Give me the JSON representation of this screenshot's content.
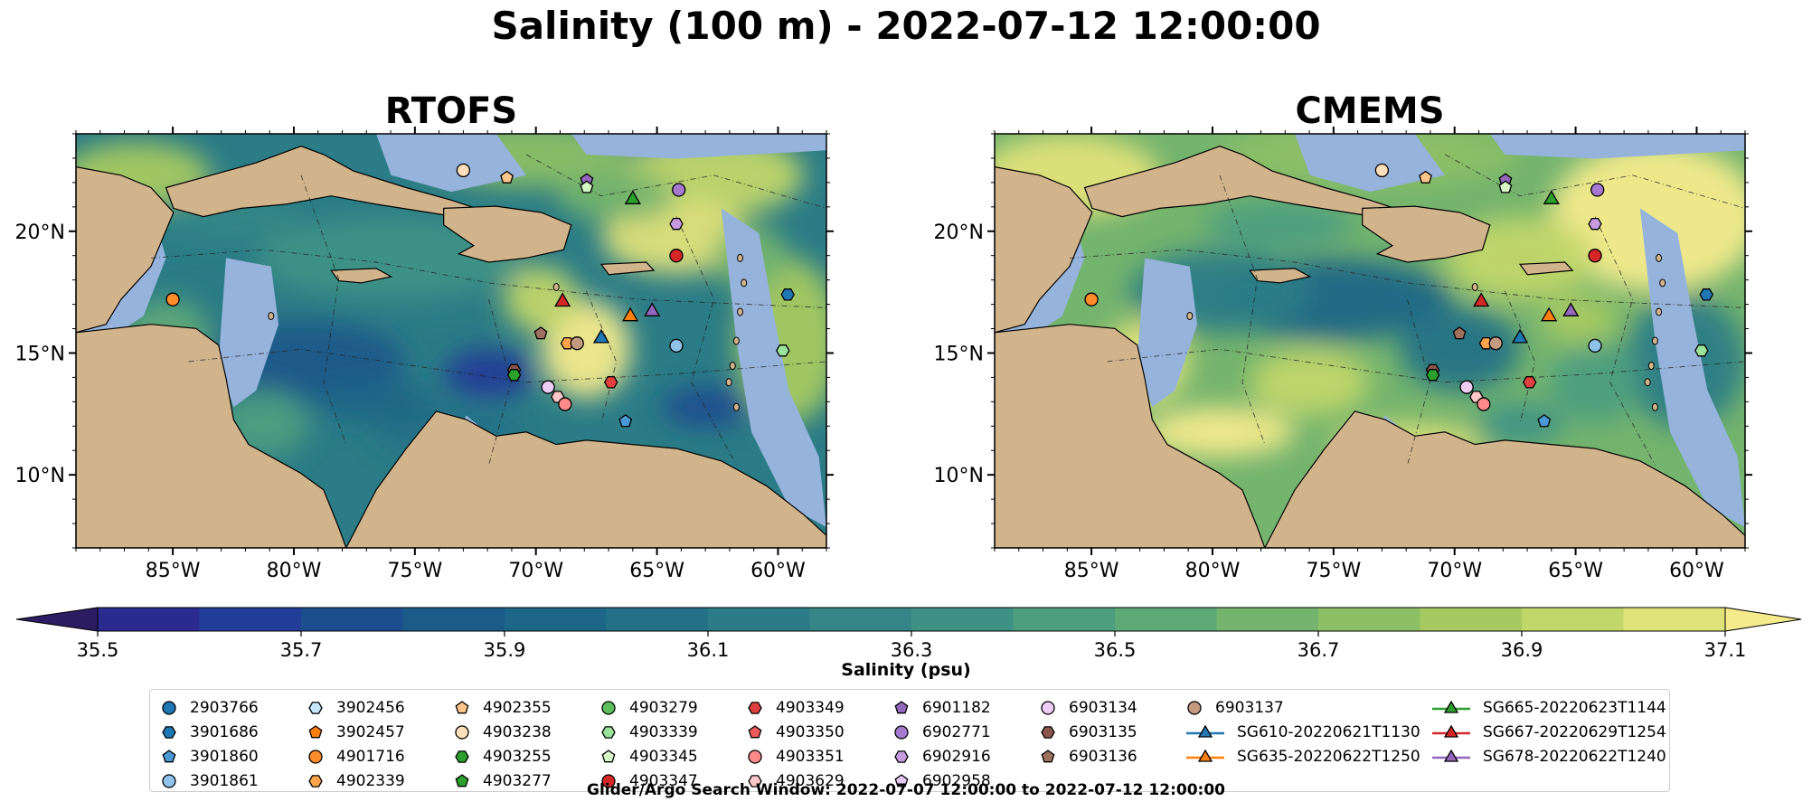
{
  "title": "Salinity (100 m) - 2022-07-12 12:00:00",
  "panels": [
    {
      "title": "RTOFS",
      "id": "rtofs"
    },
    {
      "title": "CMEMS",
      "id": "cmems"
    }
  ],
  "axes": {
    "lon_ticks": [
      -85,
      -80,
      -75,
      -70,
      -65,
      -60
    ],
    "lon_labels": [
      "85°W",
      "80°W",
      "75°W",
      "70°W",
      "65°W",
      "60°W"
    ],
    "lat_ticks": [
      10,
      15,
      20
    ],
    "lat_labels": [
      "10°N",
      "15°N",
      "20°N"
    ],
    "lon_range": [
      -89,
      -58
    ],
    "lat_range": [
      7,
      24
    ]
  },
  "colorbar": {
    "label": "Salinity (psu)",
    "ticks": [
      "35.5",
      "35.7",
      "35.9",
      "36.1",
      "36.3",
      "36.5",
      "36.7",
      "36.9",
      "37.1"
    ],
    "colors": [
      "#2c1d63",
      "#2b2a8e",
      "#223d97",
      "#1b4d8f",
      "#1b5a89",
      "#1d6687",
      "#237186",
      "#2b7c86",
      "#348786",
      "#3e9285",
      "#4d9e80",
      "#5fa977",
      "#74b46e",
      "#8cbf66",
      "#a6ca61",
      "#c2d66a",
      "#e0e27a",
      "#f5eb8c"
    ],
    "extend": "both"
  },
  "colors": {
    "land": "#d2b48c",
    "shallow": "#96b3dc",
    "deep_land_sw": "#2c1d63"
  },
  "legend": {
    "columns": [
      [
        {
          "label": "2903766",
          "marker": "circle",
          "color": "#1f77b4"
        },
        {
          "label": "3901686",
          "marker": "hexagon",
          "color": "#1f77b4"
        },
        {
          "label": "3901860",
          "marker": "pentagon",
          "color": "#4a98d4"
        },
        {
          "label": "3901861",
          "marker": "circle",
          "color": "#8fc3ea"
        }
      ],
      [
        {
          "label": "3902456",
          "marker": "hexagon",
          "color": "#c5e6fb"
        },
        {
          "label": "3902457",
          "marker": "pentagon",
          "color": "#ff7f0e"
        },
        {
          "label": "4901716",
          "marker": "circle",
          "color": "#ff8c2a"
        },
        {
          "label": "4902339",
          "marker": "hexagon",
          "color": "#ffa64d"
        }
      ],
      [
        {
          "label": "4902355",
          "marker": "pentagon",
          "color": "#ffc58a"
        },
        {
          "label": "4903238",
          "marker": "circle",
          "color": "#ffdfba"
        },
        {
          "label": "4903255",
          "marker": "hexagon",
          "color": "#2ca02c"
        },
        {
          "label": "4903277",
          "marker": "pentagon",
          "color": "#2ca02c"
        }
      ],
      [
        {
          "label": "4903279",
          "marker": "circle",
          "color": "#5cbf5c"
        },
        {
          "label": "4903339",
          "marker": "hexagon",
          "color": "#9be29b"
        },
        {
          "label": "4903345",
          "marker": "pentagon",
          "color": "#d5f7c5"
        },
        {
          "label": "4903347",
          "marker": "circle",
          "color": "#d62728"
        }
      ],
      [
        {
          "label": "4903349",
          "marker": "hexagon",
          "color": "#e0403f"
        },
        {
          "label": "4903350",
          "marker": "pentagon",
          "color": "#ef5a5a"
        },
        {
          "label": "4903351",
          "marker": "circle",
          "color": "#ff8a8a"
        },
        {
          "label": "4903629",
          "marker": "hexagon",
          "color": "#ffc8c8"
        }
      ],
      [
        {
          "label": "6901182",
          "marker": "pentagon",
          "color": "#9467bd"
        },
        {
          "label": "6902771",
          "marker": "circle",
          "color": "#a57ad0"
        },
        {
          "label": "6902916",
          "marker": "hexagon",
          "color": "#c69be0"
        },
        {
          "label": "6902958",
          "marker": "pentagon",
          "color": "#e5c8f3"
        }
      ],
      [
        {
          "label": "6903134",
          "marker": "circle",
          "color": "#eecdf5"
        },
        {
          "label": "6903135",
          "marker": "hexagon",
          "color": "#8c564b"
        },
        {
          "label": "6903136",
          "marker": "pentagon",
          "color": "#a0705f"
        }
      ],
      [
        {
          "label": "6903137",
          "marker": "circle",
          "color": "#c49a80"
        },
        {
          "label": "SG610-20220621T1130",
          "marker": "triangle-line",
          "color": "#1f77b4"
        },
        {
          "label": "SG635-20220622T1250",
          "marker": "triangle-line",
          "color": "#ff7f0e"
        }
      ],
      [
        {
          "label": "SG665-20220623T1144",
          "marker": "triangle-line",
          "color": "#2ca02c"
        },
        {
          "label": "SG667-20220629T1254",
          "marker": "triangle-line",
          "color": "#d62728"
        },
        {
          "label": "SG678-20220622T1240",
          "marker": "triangle-line",
          "color": "#9467bd"
        }
      ]
    ]
  },
  "observations": [
    {
      "id": "4901716",
      "lon": -85.0,
      "lat": 17.2
    },
    {
      "id": "4903238",
      "lon": -73.0,
      "lat": 22.5
    },
    {
      "id": "4902355",
      "lon": -71.2,
      "lat": 22.2
    },
    {
      "id": "6901182",
      "lon": -67.9,
      "lat": 22.1
    },
    {
      "id": "4903345",
      "lon": -67.9,
      "lat": 21.8
    },
    {
      "id": "SG665-20220623T1144",
      "lon": -66.0,
      "lat": 21.3
    },
    {
      "id": "6902771",
      "lon": -64.1,
      "lat": 21.7
    },
    {
      "id": "6902916",
      "lon": -64.2,
      "lat": 20.3
    },
    {
      "id": "4903347",
      "lon": -64.2,
      "lat": 19.0
    },
    {
      "id": "SG667-20220629T1254",
      "lon": -68.9,
      "lat": 17.1
    },
    {
      "id": "SG635-20220622T1250",
      "lon": -66.1,
      "lat": 16.5
    },
    {
      "id": "SG678-20220622T1240",
      "lon": -65.2,
      "lat": 16.7
    },
    {
      "id": "3901686",
      "lon": -59.6,
      "lat": 17.4
    },
    {
      "id": "6903136",
      "lon": -69.8,
      "lat": 15.8
    },
    {
      "id": "4902339",
      "lon": -68.7,
      "lat": 15.4
    },
    {
      "id": "6903137",
      "lon": -68.3,
      "lat": 15.4
    },
    {
      "id": "SG610-20220621T1130",
      "lon": -67.3,
      "lat": 15.6
    },
    {
      "id": "3901861",
      "lon": -64.2,
      "lat": 15.3
    },
    {
      "id": "4903339",
      "lon": -59.8,
      "lat": 15.1
    },
    {
      "id": "6903135",
      "lon": -70.9,
      "lat": 14.3
    },
    {
      "id": "4903255",
      "lon": -70.9,
      "lat": 14.1
    },
    {
      "id": "4903349",
      "lon": -66.9,
      "lat": 13.8
    },
    {
      "id": "6903134",
      "lon": -69.5,
      "lat": 13.6
    },
    {
      "id": "4903629",
      "lon": -69.1,
      "lat": 13.2
    },
    {
      "id": "4903351",
      "lon": -68.8,
      "lat": 12.9
    },
    {
      "id": "3901860",
      "lon": -66.3,
      "lat": 12.2
    }
  ],
  "footnote": "Glider/Argo Search Window: 2022-07-07 12:00:00 to 2022-07-12 12:00:00"
}
